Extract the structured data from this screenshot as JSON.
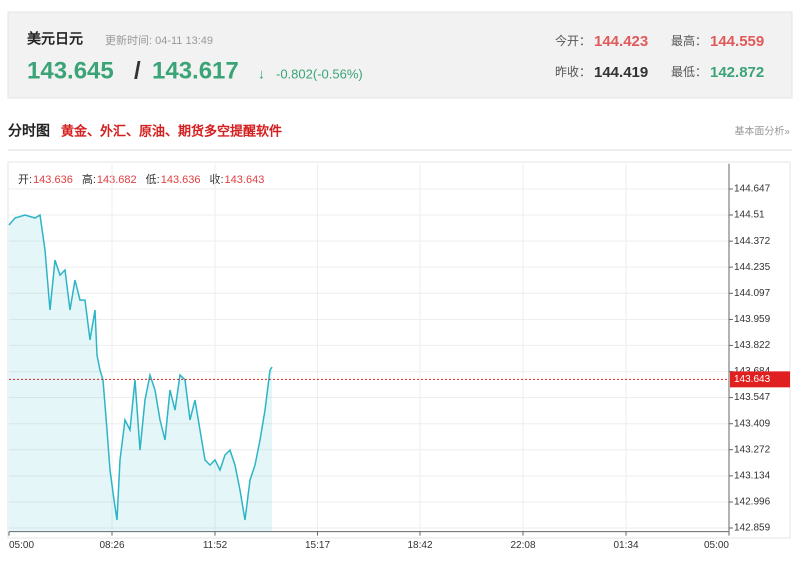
{
  "header": {
    "title": "美元日元",
    "update_time": "更新时间: 04-11 13:49",
    "price": "143.645",
    "separator": "/",
    "price2": "143.617",
    "arrow": "↓",
    "change": "-0.802(-0.56%)",
    "stats": [
      {
        "label": "今开：",
        "value": "144.423"
      },
      {
        "label": "最高：",
        "value": "144.559"
      },
      {
        "label": "昨收：",
        "value": "144.419"
      },
      {
        "label": "最低：",
        "value": "142.872"
      }
    ]
  },
  "section": {
    "title": "分时图",
    "promo": "黄金、外汇、原油、期货多空提醒软件",
    "link": "基本面分析»"
  },
  "info": [
    {
      "label": "开:",
      "value": "143.636"
    },
    {
      "label": "高:",
      "value": "143.682"
    },
    {
      "label": "低:",
      "value": "143.636"
    },
    {
      "label": "收:",
      "value": "143.643"
    }
  ],
  "chart_data": {
    "type": "line",
    "series": [
      {
        "color": "#2cb5c6",
        "x": [
          0,
          12,
          32,
          52,
          62,
          72,
          82,
          92,
          102,
          112,
          122,
          132,
          142,
          152,
          162,
          172,
          176,
          182,
          188,
          196,
          202,
          210,
          216,
          222,
          232,
          242,
          252,
          262,
          272,
          282,
          292,
          302,
          312,
          322,
          332,
          342,
          352,
          362,
          372,
          382,
          392,
          402,
          412,
          422,
          432,
          442,
          452,
          462,
          472,
          482,
          492,
          502,
          512,
          522,
          526
        ],
        "values": [
          144.457,
          144.494,
          144.51,
          144.494,
          144.51,
          144.325,
          144.009,
          144.272,
          144.193,
          144.22,
          144.009,
          144.167,
          144.061,
          144.061,
          143.851,
          144.009,
          143.771,
          143.692,
          143.64,
          143.376,
          143.165,
          143.007,
          142.901,
          143.218,
          143.429,
          143.376,
          143.64,
          143.27,
          143.534,
          143.666,
          143.587,
          143.429,
          143.323,
          143.587,
          143.481,
          143.666,
          143.64,
          143.429,
          143.534,
          143.376,
          143.218,
          143.191,
          143.218,
          143.165,
          143.244,
          143.27,
          143.191,
          143.059,
          142.901,
          143.112,
          143.191,
          143.323,
          143.481,
          143.692,
          143.708
        ]
      }
    ],
    "current_price": 143.643,
    "current_color": "#e02020",
    "xlim": [
      0,
      1440
    ],
    "xticks": [
      {
        "value": 0,
        "label": "05:00"
      },
      {
        "value": 206,
        "label": "08:26"
      },
      {
        "value": 412,
        "label": "11:52"
      },
      {
        "value": 617,
        "label": "15:17"
      },
      {
        "value": 822,
        "label": "18:42"
      },
      {
        "value": 1028,
        "label": "22:08"
      },
      {
        "value": 1234,
        "label": "01:34"
      },
      {
        "value": 1440,
        "label": "05:00"
      }
    ],
    "ylim": [
      142.84,
      144.78
    ],
    "yticks": [
      144.647,
      144.51,
      144.372,
      144.235,
      144.097,
      143.959,
      143.822,
      143.684,
      143.547,
      143.409,
      143.272,
      143.134,
      142.996,
      142.859
    ],
    "grid": true
  }
}
